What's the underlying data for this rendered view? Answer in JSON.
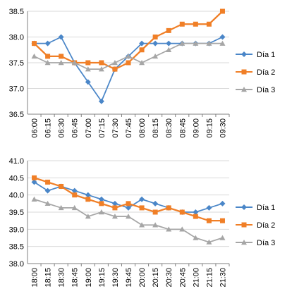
{
  "chart_data": [
    {
      "type": "line",
      "categories": [
        "06:00",
        "06:15",
        "06:30",
        "06:45",
        "07:00",
        "07:15",
        "07:30",
        "07:45",
        "08:00",
        "08:15",
        "08:30",
        "08:45",
        "09:00",
        "09:15",
        "09:30"
      ],
      "series": [
        {
          "name": "Día 1",
          "color": "#4a86c8",
          "marker": "diamond",
          "values": [
            37.875,
            37.875,
            38.0,
            37.5,
            37.125,
            36.75,
            37.375,
            37.625,
            37.875,
            37.875,
            37.875,
            37.875,
            37.875,
            37.875,
            38.0
          ]
        },
        {
          "name": "Día 2",
          "color": "#f07f27",
          "marker": "square",
          "values": [
            37.875,
            37.625,
            37.625,
            37.5,
            37.5,
            37.5,
            37.375,
            37.5,
            37.75,
            38.0,
            38.125,
            38.25,
            38.25,
            38.25,
            38.5
          ]
        },
        {
          "name": "Día 3",
          "color": "#a6a6a6",
          "marker": "triangle",
          "values": [
            37.625,
            37.5,
            37.5,
            37.5,
            37.375,
            37.375,
            37.5,
            37.625,
            37.5,
            37.625,
            37.75,
            37.875,
            37.875,
            37.875,
            37.875
          ]
        }
      ],
      "ylim": [
        36.5,
        38.5
      ],
      "yticks": [
        "38.5",
        "38.0",
        "37.5",
        "37.0",
        "36.5"
      ],
      "grid": "horizontal",
      "legend": "right"
    },
    {
      "type": "line",
      "categories": [
        "18:00",
        "18:15",
        "18:30",
        "18:45",
        "19:00",
        "19:15",
        "19:30",
        "19:45",
        "20:00",
        "20:15",
        "20:30",
        "20:45",
        "21:00",
        "21:15",
        "21:30"
      ],
      "series": [
        {
          "name": "Día 1",
          "color": "#4a86c8",
          "marker": "diamond",
          "values": [
            40.375,
            40.125,
            40.25,
            40.125,
            40.0,
            39.875,
            39.75,
            39.625,
            39.875,
            39.75,
            39.625,
            39.5,
            39.5,
            39.625,
            39.75
          ]
        },
        {
          "name": "Día 2",
          "color": "#f07f27",
          "marker": "square",
          "values": [
            40.5,
            40.375,
            40.25,
            40.0,
            39.875,
            39.75,
            39.625,
            39.75,
            39.625,
            39.5,
            39.625,
            39.5,
            39.375,
            39.25,
            39.25
          ]
        },
        {
          "name": "Día 3",
          "color": "#a6a6a6",
          "marker": "triangle",
          "values": [
            39.875,
            39.75,
            39.625,
            39.625,
            39.375,
            39.5,
            39.375,
            39.375,
            39.125,
            39.125,
            39.0,
            39.0,
            38.75,
            38.625,
            38.75
          ]
        }
      ],
      "ylim": [
        38.0,
        41.0
      ],
      "yticks": [
        "41.0",
        "40.5",
        "40.0",
        "39.5",
        "39.0",
        "38.5",
        "38.0"
      ],
      "grid": "horizontal",
      "legend": "right"
    }
  ]
}
